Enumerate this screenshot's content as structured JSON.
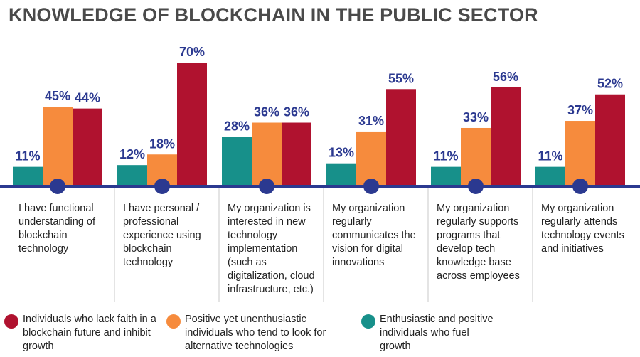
{
  "chart_data": {
    "type": "bar",
    "title": "KNOWLEDGE OF BLOCKCHAIN IN THE PUBLIC SECTOR",
    "categories": [
      "I have functional understanding of blockchain technology",
      "I have personal / professional experience using blockchain technology",
      "My organization is interested in new technology implementation (such as digitalization, cloud infrastructure, etc.)",
      "My organization regularly communicates the vision for digital innovations",
      "My organization regularly supports programs that develop tech knowledge base across employees",
      "My organization regularly attends technology events and initiatives"
    ],
    "series": [
      {
        "name": "Enthusiastic and positive individuals who fuel growth",
        "color": "#17908a",
        "values": [
          11,
          12,
          28,
          13,
          11,
          11
        ],
        "value_labels": [
          "11%",
          "12%",
          "28%",
          "13%",
          "11%",
          "11%"
        ]
      },
      {
        "name": "Positive yet unenthusiastic individuals who tend to look for alternative technologies",
        "color": "#f68b3d",
        "values": [
          45,
          18,
          36,
          31,
          33,
          37
        ],
        "value_labels": [
          "45%",
          "18%",
          "36%",
          "31%",
          "33%",
          "37%"
        ]
      },
      {
        "name": "Individuals who lack faith in a blockchain future and inhibit growth",
        "color": "#b0122f",
        "values": [
          44,
          70,
          36,
          55,
          56,
          52
        ],
        "value_labels": [
          "44%",
          "70%",
          "36%",
          "55%",
          "56%",
          "52%"
        ]
      }
    ],
    "ylim": [
      0,
      70
    ]
  }
}
